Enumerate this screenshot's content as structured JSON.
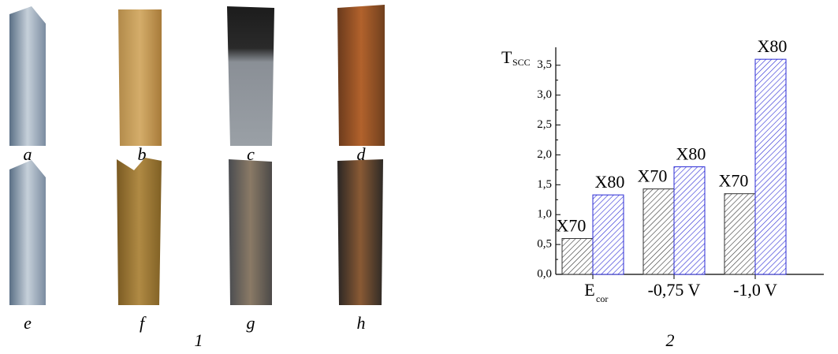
{
  "panel1": {
    "labels": [
      "a",
      "b",
      "c",
      "d",
      "e",
      "f",
      "g",
      "h"
    ],
    "number": "1"
  },
  "chart_data": {
    "type": "bar",
    "number": "2",
    "y_label": "T",
    "y_label_sub": "SCC",
    "categories": [
      "E",
      "-0,75 V",
      "-1,0 V"
    ],
    "category_subs": [
      "cor",
      null,
      null
    ],
    "series": [
      {
        "name": "X70",
        "color": "#333333",
        "values": [
          0.6,
          1.43,
          1.35
        ]
      },
      {
        "name": "X80",
        "color": "#2b2bd6",
        "values": [
          1.33,
          1.8,
          3.6
        ]
      }
    ],
    "ylim": [
      0,
      3.8
    ],
    "yticks": [
      {
        "value": 0,
        "label": "0,0"
      },
      {
        "value": 0.5,
        "label": "0,5"
      },
      {
        "value": 1,
        "label": "1,0"
      },
      {
        "value": 1.5,
        "label": "1,5"
      },
      {
        "value": 2,
        "label": "2,0"
      },
      {
        "value": 2.5,
        "label": "2,5"
      },
      {
        "value": 3,
        "label": "3,0"
      },
      {
        "value": 3.5,
        "label": "3,5"
      }
    ]
  }
}
